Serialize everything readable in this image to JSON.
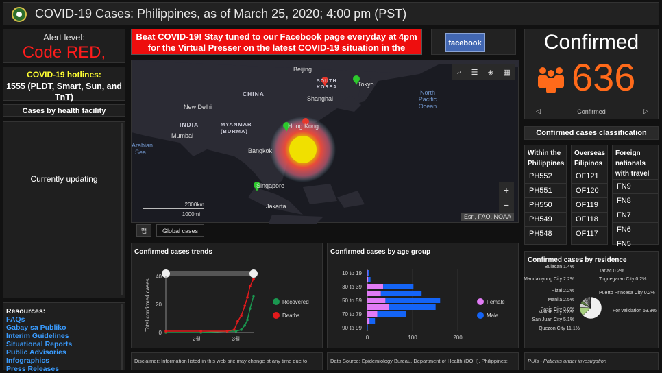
{
  "header": {
    "title": "COVID-19 Cases: Philippines, as of March 25, 2020; 4:00 pm (PST)"
  },
  "alert": {
    "label": "Alert level:",
    "value": "Code RED,"
  },
  "hotlines": {
    "title": "COVID-19 hotlines:",
    "value": "1555 (PLDT, Smart, Sun, and TnT)"
  },
  "facility": {
    "title": "Cases by health facility",
    "status": "Currently updating"
  },
  "resources": {
    "title": "Resources:",
    "links": [
      "FAQs",
      "Gabay sa Publiko",
      "Interim Guidelines",
      "Situational Reports",
      "Public Advisories",
      "Infographics",
      "Press Releases"
    ]
  },
  "banner": {
    "text": "Beat COVID-19! Stay tuned to our Facebook page everyday at 4pm for the Virtual Presser on the latest COVID-19 situation in the"
  },
  "facebook": {
    "label": "facebook"
  },
  "map": {
    "labels": {
      "beijing": "Beijing",
      "south_korea": "SOUTH KOREA",
      "tokyo": "Tokyo",
      "china": "CHINA",
      "shanghai": "Shanghai",
      "new_delhi": "New Delhi",
      "india": "INDIA",
      "myanmar": "MYANMAR (BURMA)",
      "hong_kong": "Hong Kong",
      "mumbai": "Mumbai",
      "bangkok": "Bangkok",
      "arabian_sea": "Arabian Sea",
      "singapore": "Singapore",
      "jakarta": "Jakarta",
      "north_pacific": "North Pacific Ocean"
    },
    "scale": {
      "km": "2000km",
      "mi": "1000mi"
    },
    "attribution": "Esri, FAO, NOAA",
    "zoom_in": "+",
    "zoom_out": "−"
  },
  "tabs": [
    {
      "label": "맵"
    },
    {
      "label": "Global cases"
    }
  ],
  "trend_chart": {
    "title": "Confirmed cases trends",
    "ylabel": "Total confirmed cases",
    "legend": [
      "Recovered",
      "Deaths"
    ],
    "colors": {
      "recovered": "#1a9850",
      "deaths": "#e31a1c",
      "confirmed": "#cccccc"
    }
  },
  "age_chart": {
    "title": "Confirmed cases by age group",
    "legend": [
      "Female",
      "Male"
    ],
    "colors": {
      "female": "#e17bf5",
      "male": "#1464f6"
    }
  },
  "confirmed": {
    "title": "Confirmed",
    "value": "636",
    "sub": "Confirmed"
  },
  "classification": {
    "title": "Confirmed cases classification",
    "within": {
      "head": "Within the Philippines",
      "items": [
        "PH552",
        "PH551",
        "PH550",
        "PH549",
        "PH548"
      ]
    },
    "overseas": {
      "head": "Overseas Filipinos",
      "items": [
        "OF121",
        "OF120",
        "OF119",
        "OF118",
        "OF117"
      ]
    },
    "foreign": {
      "head": "Foreign nationals with travel",
      "items": [
        "FN9",
        "FN8",
        "FN7",
        "FN6",
        "FN5"
      ]
    }
  },
  "residence_chart": {
    "title": "Confirmed cases by residence"
  },
  "disclaimers": {
    "left": "Disclaimer: Information listed in this web site may change at any time due to",
    "middle": "Data Source: Epidemiology Bureau, Department of Health (DOH), Philippines;",
    "right": "PUIs - Patients under investigation"
  },
  "chart_data": [
    {
      "type": "line",
      "title": "Confirmed cases trends",
      "ylabel": "Total confirmed cases",
      "ylim": [
        0,
        40
      ],
      "yticks": [
        0,
        20,
        40
      ],
      "xticks": [
        "2월",
        "3월"
      ],
      "series": [
        {
          "name": "Recovered",
          "x": [
            0,
            0.4,
            0.7,
            0.8,
            0.86,
            0.9,
            0.93,
            0.96,
            1.0
          ],
          "values": [
            0,
            0,
            1,
            1,
            2,
            5,
            9,
            17,
            26
          ]
        },
        {
          "name": "Deaths",
          "x": [
            0,
            0.4,
            0.7,
            0.78,
            0.82,
            0.86,
            0.9,
            0.93,
            0.96,
            1.0
          ],
          "values": [
            1,
            1,
            1,
            2,
            8,
            12,
            19,
            25,
            33,
            38
          ]
        }
      ]
    },
    {
      "type": "bar",
      "title": "Confirmed cases by age group",
      "categories": [
        "10 to 19",
        "",
        "30 to 39",
        "",
        "50 to 59",
        "",
        "70 to 79",
        "",
        "90 to 99"
      ],
      "xlim": [
        0,
        200
      ],
      "xticks": [
        0,
        100,
        200
      ],
      "series": [
        {
          "name": "Female",
          "values": [
            1,
            2,
            35,
            30,
            40,
            48,
            22,
            5,
            0
          ]
        },
        {
          "name": "Male",
          "values": [
            2,
            5,
            67,
            90,
            121,
            103,
            63,
            12,
            1
          ]
        }
      ]
    },
    {
      "type": "pie",
      "title": "Confirmed cases by residence",
      "labels": [
        "For validation 53.8%",
        "Quezon City 11.1%",
        "San Juan City 5.1%",
        "Makati City 3.8%",
        "Pasig City 3.0%",
        "Manila 2.5%",
        "Rizal 2.2%",
        "Mandaluyong City 2.2%",
        "Bulacan 1.4%",
        "Tarlac 0.2%",
        "Tuguegarao City 0.2%",
        "Puerto Princesa City 0.2%"
      ],
      "values": [
        53.8,
        11.1,
        5.1,
        3.8,
        3.0,
        2.5,
        2.2,
        2.2,
        1.4,
        0.2,
        0.2,
        0.2
      ]
    }
  ]
}
